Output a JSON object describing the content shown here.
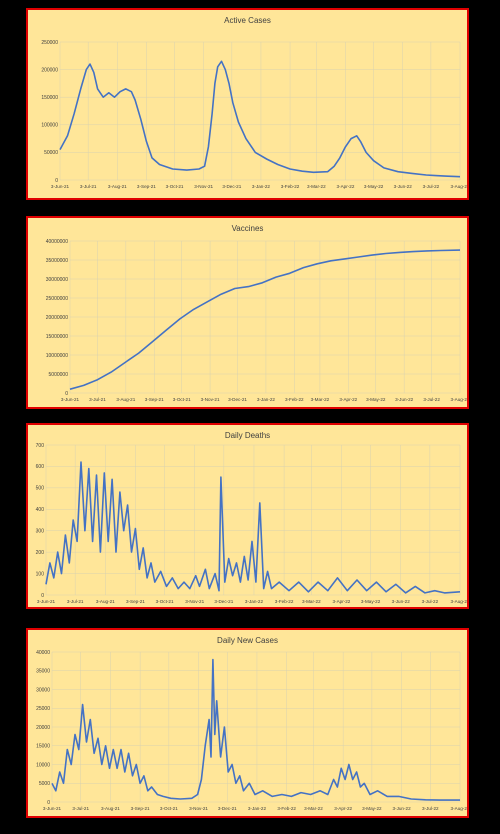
{
  "charts": [
    {
      "title": "Active Cases",
      "y_ticks": [
        "0",
        "50000",
        "100000",
        "150000",
        "200000",
        "250000"
      ],
      "x_ticks": [
        "3-Jun-21",
        "3-Jul-21",
        "3-Aug-21",
        "3-Sep-21",
        "3-Oct-21",
        "3-Nov-21",
        "3-Dec-21",
        "3-Jan-22",
        "3-Feb-22",
        "3-Mar-22",
        "3-Apr-22",
        "3-May-22",
        "3-Jun-22",
        "3-Jul-22",
        "3-Aug-22"
      ]
    },
    {
      "title": "Vaccines",
      "y_ticks": [
        "0",
        "5000000",
        "10000000",
        "15000000",
        "20000000",
        "25000000",
        "30000000",
        "35000000",
        "40000000"
      ],
      "x_ticks": [
        "3-Jun-21",
        "3-Jul-21",
        "3-Aug-21",
        "3-Sep-21",
        "3-Oct-21",
        "3-Nov-21",
        "3-Dec-21",
        "3-Jan-22",
        "3-Feb-22",
        "3-Mar-22",
        "3-Apr-22",
        "3-May-22",
        "3-Jun-22",
        "3-Jul-22",
        "3-Aug-22"
      ]
    },
    {
      "title": "Daily Deaths",
      "y_ticks": [
        "0",
        "100",
        "200",
        "300",
        "400",
        "500",
        "600",
        "700"
      ],
      "x_ticks": [
        "3-Jun-21",
        "3-Jul-21",
        "3-Aug-21",
        "3-Sep-21",
        "3-Oct-21",
        "3-Nov-21",
        "3-Dec-21",
        "3-Jan-22",
        "3-Feb-22",
        "3-Mar-22",
        "3-Apr-22",
        "3-May-22",
        "3-Jun-22",
        "3-Jul-22",
        "3-Aug-22"
      ]
    },
    {
      "title": "Daily New Cases",
      "y_ticks": [
        "0",
        "5000",
        "10000",
        "15000",
        "20000",
        "25000",
        "30000",
        "35000",
        "40000"
      ],
      "x_ticks": [
        "3-Jun-21",
        "3-Jul-21",
        "3-Aug-21",
        "3-Sep-21",
        "3-Oct-21",
        "3-Nov-21",
        "3-Dec-21",
        "3-Jan-22",
        "3-Feb-22",
        "3-Mar-22",
        "3-Apr-22",
        "3-May-22",
        "3-Jun-22",
        "3-Jul-22",
        "3-Aug-22"
      ]
    }
  ],
  "chart_data": [
    {
      "type": "line",
      "title": "Active Cases",
      "ylim": [
        0,
        250000
      ],
      "x_range": [
        "2021-06-03",
        "2022-08-03"
      ],
      "grid": true,
      "color": "#4472c4",
      "series": [
        {
          "values": [
            [
              0,
              55000
            ],
            [
              8,
              80000
            ],
            [
              15,
              120000
            ],
            [
              22,
              165000
            ],
            [
              28,
              200000
            ],
            [
              32,
              210000
            ],
            [
              36,
              195000
            ],
            [
              40,
              165000
            ],
            [
              46,
              150000
            ],
            [
              52,
              158000
            ],
            [
              58,
              150000
            ],
            [
              64,
              160000
            ],
            [
              70,
              165000
            ],
            [
              76,
              160000
            ],
            [
              80,
              145000
            ],
            [
              86,
              110000
            ],
            [
              92,
              70000
            ],
            [
              98,
              40000
            ],
            [
              106,
              28000
            ],
            [
              120,
              20000
            ],
            [
              135,
              18000
            ],
            [
              148,
              20000
            ],
            [
              154,
              25000
            ],
            [
              158,
              60000
            ],
            [
              162,
              120000
            ],
            [
              165,
              175000
            ],
            [
              168,
              205000
            ],
            [
              172,
              215000
            ],
            [
              176,
              200000
            ],
            [
              180,
              175000
            ],
            [
              184,
              140000
            ],
            [
              190,
              105000
            ],
            [
              198,
              75000
            ],
            [
              208,
              50000
            ],
            [
              220,
              38000
            ],
            [
              232,
              28000
            ],
            [
              245,
              20000
            ],
            [
              258,
              16000
            ],
            [
              270,
              14000
            ],
            [
              285,
              15000
            ],
            [
              292,
              25000
            ],
            [
              298,
              40000
            ],
            [
              304,
              60000
            ],
            [
              310,
              75000
            ],
            [
              316,
              80000
            ],
            [
              320,
              70000
            ],
            [
              326,
              50000
            ],
            [
              334,
              35000
            ],
            [
              345,
              22000
            ],
            [
              360,
              15000
            ],
            [
              375,
              12000
            ],
            [
              390,
              9000
            ],
            [
              400,
              8000
            ],
            [
              410,
              7000
            ],
            [
              426,
              6000
            ]
          ]
        }
      ]
    },
    {
      "type": "line",
      "title": "Vaccines",
      "ylim": [
        0,
        40000000
      ],
      "x_range": [
        "2021-06-03",
        "2022-08-03"
      ],
      "grid": true,
      "color": "#4472c4",
      "series": [
        {
          "values": [
            [
              0,
              1000000
            ],
            [
              15,
              2000000
            ],
            [
              30,
              3500000
            ],
            [
              45,
              5500000
            ],
            [
              60,
              8000000
            ],
            [
              75,
              10500000
            ],
            [
              90,
              13500000
            ],
            [
              105,
              16500000
            ],
            [
              120,
              19500000
            ],
            [
              135,
              22000000
            ],
            [
              150,
              24000000
            ],
            [
              165,
              26000000
            ],
            [
              180,
              27500000
            ],
            [
              195,
              28000000
            ],
            [
              210,
              29000000
            ],
            [
              225,
              30500000
            ],
            [
              240,
              31500000
            ],
            [
              255,
              33000000
            ],
            [
              270,
              34000000
            ],
            [
              285,
              34800000
            ],
            [
              300,
              35300000
            ],
            [
              315,
              35800000
            ],
            [
              330,
              36300000
            ],
            [
              345,
              36700000
            ],
            [
              360,
              37000000
            ],
            [
              375,
              37200000
            ],
            [
              390,
              37400000
            ],
            [
              405,
              37500000
            ],
            [
              426,
              37600000
            ]
          ]
        }
      ]
    },
    {
      "type": "line",
      "title": "Daily Deaths",
      "ylim": [
        0,
        700
      ],
      "x_range": [
        "2021-06-03",
        "2022-08-03"
      ],
      "grid": true,
      "color": "#4472c4",
      "series": [
        {
          "values": [
            [
              0,
              50
            ],
            [
              4,
              150
            ],
            [
              8,
              80
            ],
            [
              12,
              200
            ],
            [
              16,
              100
            ],
            [
              20,
              280
            ],
            [
              24,
              150
            ],
            [
              28,
              350
            ],
            [
              32,
              250
            ],
            [
              36,
              620
            ],
            [
              40,
              300
            ],
            [
              44,
              590
            ],
            [
              48,
              250
            ],
            [
              52,
              560
            ],
            [
              56,
              200
            ],
            [
              60,
              570
            ],
            [
              64,
              250
            ],
            [
              68,
              540
            ],
            [
              72,
              200
            ],
            [
              76,
              480
            ],
            [
              80,
              300
            ],
            [
              84,
              420
            ],
            [
              88,
              200
            ],
            [
              92,
              310
            ],
            [
              96,
              120
            ],
            [
              100,
              220
            ],
            [
              104,
              80
            ],
            [
              108,
              150
            ],
            [
              112,
              60
            ],
            [
              118,
              110
            ],
            [
              124,
              40
            ],
            [
              130,
              80
            ],
            [
              136,
              30
            ],
            [
              142,
              60
            ],
            [
              148,
              30
            ],
            [
              154,
              90
            ],
            [
              158,
              40
            ],
            [
              164,
              120
            ],
            [
              168,
              30
            ],
            [
              174,
              100
            ],
            [
              178,
              20
            ],
            [
              180,
              550
            ],
            [
              184,
              60
            ],
            [
              188,
              170
            ],
            [
              192,
              90
            ],
            [
              196,
              150
            ],
            [
              200,
              60
            ],
            [
              204,
              180
            ],
            [
              208,
              70
            ],
            [
              212,
              250
            ],
            [
              216,
              60
            ],
            [
              220,
              430
            ],
            [
              224,
              30
            ],
            [
              228,
              110
            ],
            [
              232,
              30
            ],
            [
              240,
              60
            ],
            [
              250,
              20
            ],
            [
              260,
              60
            ],
            [
              270,
              15
            ],
            [
              280,
              60
            ],
            [
              290,
              20
            ],
            [
              300,
              80
            ],
            [
              310,
              20
            ],
            [
              320,
              70
            ],
            [
              330,
              20
            ],
            [
              340,
              60
            ],
            [
              350,
              15
            ],
            [
              360,
              50
            ],
            [
              370,
              10
            ],
            [
              380,
              40
            ],
            [
              390,
              10
            ],
            [
              400,
              20
            ],
            [
              410,
              10
            ],
            [
              426,
              15
            ]
          ]
        }
      ]
    },
    {
      "type": "line",
      "title": "Daily New Cases",
      "ylim": [
        0,
        40000
      ],
      "x_range": [
        "2021-06-03",
        "2022-08-03"
      ],
      "grid": true,
      "color": "#4472c4",
      "series": [
        {
          "values": [
            [
              0,
              5000
            ],
            [
              4,
              3000
            ],
            [
              8,
              8000
            ],
            [
              12,
              5000
            ],
            [
              16,
              14000
            ],
            [
              20,
              10000
            ],
            [
              24,
              18000
            ],
            [
              28,
              14000
            ],
            [
              32,
              26000
            ],
            [
              36,
              16000
            ],
            [
              40,
              22000
            ],
            [
              44,
              13000
            ],
            [
              48,
              17000
            ],
            [
              52,
              10000
            ],
            [
              56,
              15000
            ],
            [
              60,
              9000
            ],
            [
              64,
              14000
            ],
            [
              68,
              9000
            ],
            [
              72,
              14000
            ],
            [
              76,
              8000
            ],
            [
              80,
              13000
            ],
            [
              84,
              7000
            ],
            [
              88,
              10000
            ],
            [
              92,
              5000
            ],
            [
              96,
              7000
            ],
            [
              100,
              3000
            ],
            [
              104,
              4000
            ],
            [
              110,
              2000
            ],
            [
              116,
              1500
            ],
            [
              124,
              1000
            ],
            [
              134,
              800
            ],
            [
              146,
              1000
            ],
            [
              152,
              2000
            ],
            [
              156,
              6000
            ],
            [
              160,
              15000
            ],
            [
              164,
              22000
            ],
            [
              166,
              12000
            ],
            [
              168,
              38000
            ],
            [
              170,
              18000
            ],
            [
              172,
              27000
            ],
            [
              176,
              12000
            ],
            [
              180,
              20000
            ],
            [
              184,
              8000
            ],
            [
              188,
              10000
            ],
            [
              192,
              5000
            ],
            [
              196,
              7000
            ],
            [
              200,
              3000
            ],
            [
              206,
              5000
            ],
            [
              212,
              2000
            ],
            [
              220,
              3000
            ],
            [
              230,
              1500
            ],
            [
              240,
              2000
            ],
            [
              250,
              1500
            ],
            [
              260,
              2500
            ],
            [
              270,
              2000
            ],
            [
              280,
              3000
            ],
            [
              288,
              2000
            ],
            [
              294,
              6000
            ],
            [
              298,
              4000
            ],
            [
              302,
              9000
            ],
            [
              306,
              6000
            ],
            [
              310,
              10000
            ],
            [
              314,
              6000
            ],
            [
              318,
              8000
            ],
            [
              322,
              4000
            ],
            [
              326,
              5000
            ],
            [
              332,
              2000
            ],
            [
              340,
              3000
            ],
            [
              350,
              1500
            ],
            [
              362,
              1500
            ],
            [
              375,
              800
            ],
            [
              390,
              600
            ],
            [
              405,
              500
            ],
            [
              426,
              500
            ]
          ]
        }
      ]
    }
  ]
}
